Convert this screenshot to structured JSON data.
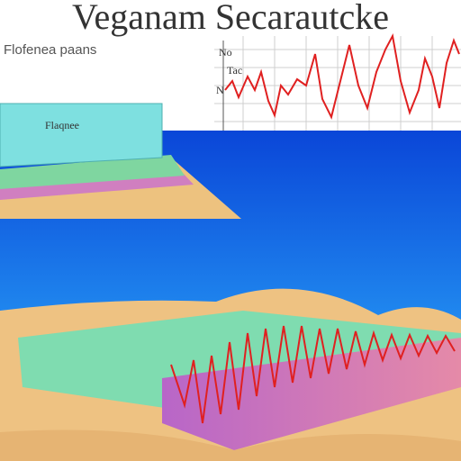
{
  "header": {
    "title": "Veganam Secarautcke",
    "subtitle": "Flofenea paans"
  },
  "panel": {
    "label": "Flaqnee"
  },
  "chart": {
    "label": "Tac",
    "axis_marks": [
      "No",
      "N"
    ]
  }
}
